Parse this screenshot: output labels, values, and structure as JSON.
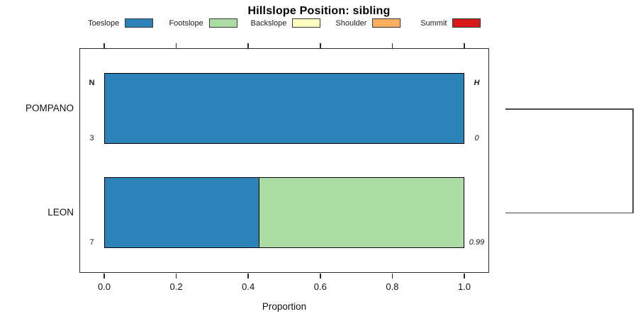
{
  "title": "Hillslope Position: sibling",
  "legend": {
    "items": [
      {
        "label": "Toeslope",
        "color": "#2B83BA"
      },
      {
        "label": "Footslope",
        "color": "#ABDDA4"
      },
      {
        "label": "Backslope",
        "color": "#FFFFBF"
      },
      {
        "label": "Shoulder",
        "color": "#FDAE61"
      },
      {
        "label": "Summit",
        "color": "#D7191C"
      }
    ]
  },
  "columns": {
    "left_header": "N",
    "right_header": "H"
  },
  "rows": [
    {
      "label": "POMPANO",
      "n": "3",
      "h": "0",
      "segments": [
        {
          "name": "Toeslope",
          "value": 1.0,
          "color": "#2B83BA"
        }
      ]
    },
    {
      "label": "LEON",
      "n": "7",
      "h": "0.99",
      "segments": [
        {
          "name": "Toeslope",
          "value": 0.429,
          "color": "#2B83BA"
        },
        {
          "name": "Footslope",
          "value": 0.571,
          "color": "#ABDDA4"
        }
      ]
    }
  ],
  "chart_data": {
    "type": "bar",
    "orientation": "horizontal",
    "stacked": true,
    "title": "Hillslope Position: sibling",
    "xlabel": "Proportion",
    "xlim": [
      0,
      1
    ],
    "x_ticks": [
      "0.0",
      "0.2",
      "0.4",
      "0.6",
      "0.8",
      "1.0"
    ],
    "grid": false,
    "legend_position": "top",
    "categories": [
      "POMPANO",
      "LEON"
    ],
    "series": [
      {
        "name": "Toeslope",
        "color": "#2B83BA",
        "values": [
          1.0,
          0.429
        ]
      },
      {
        "name": "Footslope",
        "color": "#ABDDA4",
        "values": [
          0.0,
          0.571
        ]
      },
      {
        "name": "Backslope",
        "color": "#FFFFBF",
        "values": [
          0.0,
          0.0
        ]
      },
      {
        "name": "Shoulder",
        "color": "#FDAE61",
        "values": [
          0.0,
          0.0
        ]
      },
      {
        "name": "Summit",
        "color": "#D7191C",
        "values": [
          0.0,
          0.0
        ]
      }
    ],
    "annotations": {
      "N_column": {
        "header": "N",
        "values": [
          3,
          7
        ]
      },
      "H_column": {
        "header": "H",
        "values": [
          0,
          0.99
        ]
      }
    },
    "dendrogram": {
      "description": "two-leaf cluster in right margin joining POMPANO and LEON",
      "leaves": [
        "POMPANO",
        "LEON"
      ]
    }
  }
}
